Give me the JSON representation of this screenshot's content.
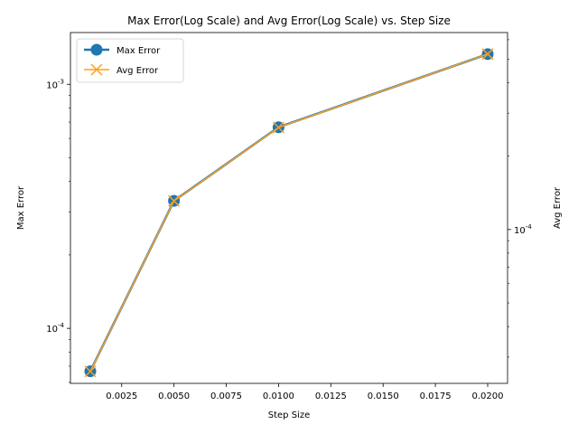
{
  "chart_data": {
    "type": "line",
    "title": "Max Error(Log Scale) and Avg Error(Log Scale) vs. Step Size",
    "xlabel": "Step Size",
    "ylabel_left": "Max Error",
    "ylabel_right": "Avg Error",
    "x": [
      0.001,
      0.005,
      0.01,
      0.02
    ],
    "x_ticks": [
      0.0025,
      0.005,
      0.0075,
      0.01,
      0.0125,
      0.015,
      0.0175,
      0.02
    ],
    "x_tick_labels": [
      "0.0025",
      "0.0050",
      "0.0075",
      "0.0100",
      "0.0125",
      "0.0150",
      "0.0175",
      "0.0200"
    ],
    "xlim": [
      5e-05,
      0.02095
    ],
    "left_axis": {
      "scale": "log",
      "ylim": [
        5.95e-05,
        0.00163
      ],
      "major_ticks": [
        0.0001,
        0.001
      ],
      "major_labels": [
        "10^-4",
        "10^-3"
      ]
    },
    "right_axis": {
      "scale": "log",
      "ylim": [
        2.34e-05,
        0.000642
      ],
      "major_ticks": [
        0.0001
      ],
      "major_labels": [
        "10^-4"
      ]
    },
    "series": [
      {
        "name": "Max Error",
        "axis": "left",
        "values": [
          6.67e-05,
          0.000333,
          0.000667,
          0.00133
        ],
        "color": "#1f77b4",
        "marker": "circle"
      },
      {
        "name": "Avg Error",
        "axis": "right",
        "values": [
          2.62e-05,
          0.000131,
          0.000262,
          0.000524
        ],
        "color": "#ff9f1c",
        "marker": "x"
      }
    ],
    "legend": {
      "position": "top-left",
      "entries": [
        "Max Error",
        "Avg Error"
      ]
    },
    "grid": false
  }
}
